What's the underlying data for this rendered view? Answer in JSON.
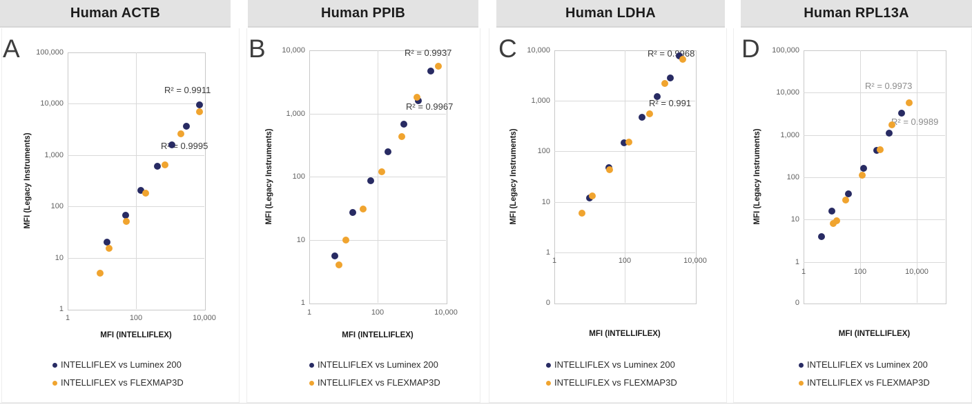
{
  "figure": {
    "description": "Correlation of MFI values between INTELLIFLEX and legacy Luminex instruments for four human genes",
    "x_axis_title": "MFI (INTELLIFLEX)",
    "y_axis_title": "MFI (Legacy Instruments)",
    "legend": [
      {
        "label": "INTELLIFLEX vs Luminex 200",
        "color": "#282b63"
      },
      {
        "label": "INTELLIFLEX vs FLEXMAP3D",
        "color": "#f0a42f"
      }
    ],
    "colors": {
      "header_bg": "#e3e3e3",
      "gridline": "#d9d9d9",
      "annotation_dark": "#3a3a3a",
      "annotation_gray": "#8c8c8c"
    }
  },
  "chart_data": [
    {
      "panel": "A",
      "title": "Human ACTB",
      "type": "scatter",
      "x_scale": "log",
      "y_scale": "log",
      "xlim": [
        1,
        10000
      ],
      "ylim": [
        1,
        100000
      ],
      "xlabel": "MFI (INTELLIFLEX)",
      "ylabel": "MFI (Legacy Instruments)",
      "x_ticks": [
        "1",
        "100",
        "10,000"
      ],
      "y_ticks": [
        "1",
        "10",
        "100",
        "1,000",
        "10,000",
        "100,000"
      ],
      "y_floor_tick": null,
      "annotations": [
        {
          "text": "R² = 0.9911",
          "color": "#3a3a3a"
        },
        {
          "text": "R² = 0.9995",
          "color": "#3a3a3a"
        }
      ],
      "series": [
        {
          "name": "INTELLIFLEX vs Luminex 200",
          "color": "#282b63",
          "points": [
            [
              14,
              20
            ],
            [
              49,
              67
            ],
            [
              140,
              205
            ],
            [
              430,
              610
            ],
            [
              1100,
              1600
            ],
            [
              3000,
              3700
            ],
            [
              7200,
              9600
            ]
          ]
        },
        {
          "name": "INTELLIFLEX vs FLEXMAP3D",
          "color": "#f0a42f",
          "points": [
            [
              9,
              5
            ],
            [
              16,
              15
            ],
            [
              51,
              51
            ],
            [
              190,
              180
            ],
            [
              710,
              650
            ],
            [
              2100,
              2600
            ],
            [
              7200,
              6900
            ]
          ]
        }
      ]
    },
    {
      "panel": "B",
      "title": "Human PPIB",
      "type": "scatter",
      "x_scale": "log",
      "y_scale": "log",
      "xlim": [
        1,
        10000
      ],
      "ylim": [
        1,
        10000
      ],
      "xlabel": "MFI (INTELLIFLEX)",
      "ylabel": "MFI (Legacy Instruments)",
      "x_ticks": [
        "1",
        "100",
        "10,000"
      ],
      "y_ticks": [
        "1",
        "10",
        "100",
        "1,000",
        "10,000"
      ],
      "y_floor_tick": null,
      "annotations": [
        {
          "text": "R² = 0.9937",
          "color": "#3a3a3a"
        },
        {
          "text": "R² = 0.9967",
          "color": "#3a3a3a"
        }
      ],
      "series": [
        {
          "name": "INTELLIFLEX vs Luminex 200",
          "color": "#282b63",
          "points": [
            [
              5.6,
              5.5
            ],
            [
              19,
              27
            ],
            [
              64,
              86
            ],
            [
              200,
              250
            ],
            [
              580,
              680
            ],
            [
              1550,
              1600
            ],
            [
              3600,
              4700
            ]
          ]
        },
        {
          "name": "INTELLIFLEX vs FLEXMAP3D",
          "color": "#f0a42f",
          "points": [
            [
              7.5,
              4
            ],
            [
              12,
              10
            ],
            [
              37,
              31
            ],
            [
              130,
              120
            ],
            [
              500,
              430
            ],
            [
              1400,
              1800
            ],
            [
              6000,
              5600
            ]
          ]
        }
      ]
    },
    {
      "panel": "C",
      "title": "Human LDHA",
      "type": "scatter",
      "x_scale": "log",
      "y_scale": "log",
      "xlim": [
        1,
        10000
      ],
      "ylim": [
        0,
        10000
      ],
      "xlabel": "MFI (INTELLIFLEX)",
      "ylabel": "MFI (Legacy Instruments)",
      "x_ticks": [
        "1",
        "100",
        "10,000"
      ],
      "y_ticks": [
        "1",
        "10",
        "100",
        "1,000",
        "10,000"
      ],
      "y_floor_tick": "0",
      "annotations": [
        {
          "text": "R² = 0.9968",
          "color": "#3a3a3a"
        },
        {
          "text": "R² = 0.991",
          "color": "#3a3a3a"
        }
      ],
      "series": [
        {
          "name": "INTELLIFLEX vs Luminex 200",
          "color": "#282b63",
          "points": [
            [
              10,
              12
            ],
            [
              35,
              48
            ],
            [
              97,
              148
            ],
            [
              310,
              465
            ],
            [
              830,
              1200
            ],
            [
              2000,
              2800
            ],
            [
              3600,
              7700
            ]
          ]
        },
        {
          "name": "INTELLIFLEX vs FLEXMAP3D",
          "color": "#f0a42f",
          "points": [
            [
              6,
              6
            ],
            [
              12,
              13
            ],
            [
              37,
              43
            ],
            [
              130,
              150
            ],
            [
              515,
              550
            ],
            [
              1400,
              2200
            ],
            [
              4500,
              6600
            ]
          ]
        }
      ]
    },
    {
      "panel": "D",
      "title": "Human RPL13A",
      "type": "scatter",
      "x_scale": "log",
      "y_scale": "log",
      "xlim": [
        1,
        100000
      ],
      "ylim": [
        0,
        100000
      ],
      "xlabel": "MFI (INTELLIFLEX)",
      "ylabel": "MFI (Legacy Instruments)",
      "x_ticks": [
        "1",
        "100",
        "10,000"
      ],
      "y_ticks": [
        "1",
        "10",
        "100",
        "1,000",
        "10,000",
        "100,000"
      ],
      "y_floor_tick": "0",
      "annotations": [
        {
          "text": "R² = 0.9973",
          "color": "#8c8c8c"
        },
        {
          "text": "R² = 0.9989",
          "color": "#8c8c8c"
        }
      ],
      "series": [
        {
          "name": "INTELLIFLEX vs Luminex 200",
          "color": "#282b63",
          "points": [
            [
              4.2,
              4
            ],
            [
              10,
              16
            ],
            [
              38,
              40
            ],
            [
              130,
              160
            ],
            [
              380,
              430
            ],
            [
              1050,
              1100
            ],
            [
              2900,
              3300
            ]
          ]
        },
        {
          "name": "INTELLIFLEX vs FLEXMAP3D",
          "color": "#f0a42f",
          "points": [
            [
              11,
              8
            ],
            [
              15,
              9.5
            ],
            [
              30,
              29
            ],
            [
              117,
              110
            ],
            [
              510,
              440
            ],
            [
              1350,
              1700
            ],
            [
              5400,
              5700
            ]
          ]
        }
      ]
    }
  ]
}
